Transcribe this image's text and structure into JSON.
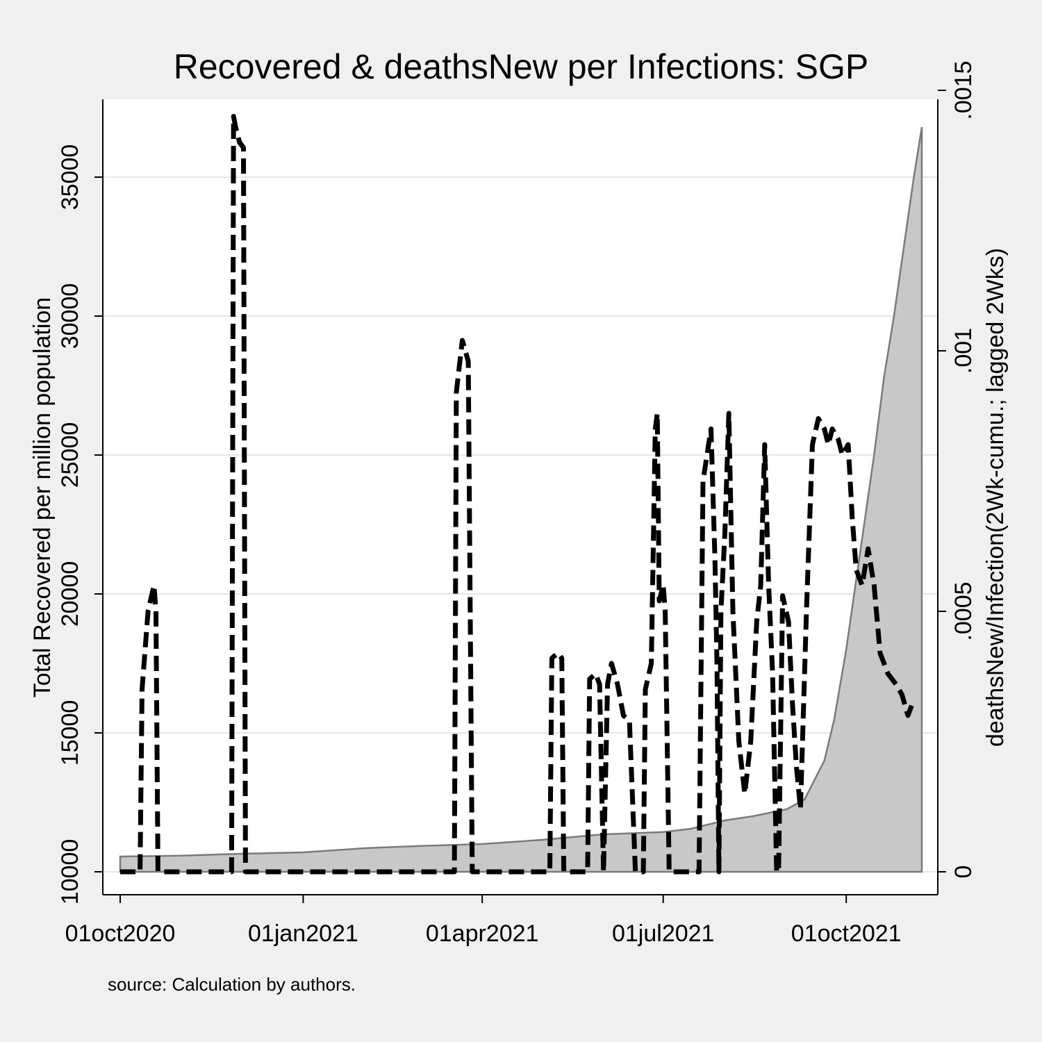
{
  "chart_data": {
    "type": "line",
    "title": "Recovered & deathsNew per Infections: SGP",
    "note": "source: Calculation by authors.",
    "x_axis": {
      "type": "date",
      "range": [
        "2020-10-01",
        "2021-11-08"
      ],
      "ticks": [
        {
          "date": "2020-10-01",
          "label": "01oct2020"
        },
        {
          "date": "2021-01-01",
          "label": "01jan2021"
        },
        {
          "date": "2021-04-01",
          "label": "01apr2021"
        },
        {
          "date": "2021-07-01",
          "label": "01jul2021"
        },
        {
          "date": "2021-10-01",
          "label": "01oct2021"
        }
      ]
    },
    "y_left": {
      "label": "Total Recovered per million population",
      "range": [
        10000,
        37000
      ],
      "ticks": [
        10000,
        15000,
        20000,
        25000,
        30000,
        35000
      ],
      "tick_labels": [
        "10000",
        "15000",
        "20000",
        "25000",
        "30000",
        "35000"
      ],
      "grid": true
    },
    "y_right": {
      "label": "deathsNew/Infection(2Wk-cumu.; lagged 2Wks)",
      "range": [
        0,
        0.00144
      ],
      "ticks": [
        0,
        0.0005,
        0.001,
        0.0015
      ],
      "tick_labels": [
        "0",
        ".0005",
        ".001",
        ".0015"
      ]
    },
    "series": [
      {
        "axis": "left",
        "style": "area",
        "color": "#c8c8c8",
        "line_color": "#7a7a7a",
        "points": [
          [
            "2020-10-01",
            10550
          ],
          [
            "2020-11-01",
            10580
          ],
          [
            "2020-12-01",
            10650
          ],
          [
            "2021-01-01",
            10700
          ],
          [
            "2021-02-01",
            10850
          ],
          [
            "2021-03-01",
            10930
          ],
          [
            "2021-04-01",
            11000
          ],
          [
            "2021-05-01",
            11150
          ],
          [
            "2021-06-01",
            11350
          ],
          [
            "2021-07-01",
            11430
          ],
          [
            "2021-07-15",
            11550
          ],
          [
            "2021-08-01",
            11850
          ],
          [
            "2021-08-15",
            12000
          ],
          [
            "2021-09-01",
            12250
          ],
          [
            "2021-09-10",
            12600
          ],
          [
            "2021-09-20",
            14000
          ],
          [
            "2021-09-25",
            15500
          ],
          [
            "2021-10-01",
            18000
          ],
          [
            "2021-10-05",
            20000
          ],
          [
            "2021-10-10",
            22500
          ],
          [
            "2021-10-15",
            25000
          ],
          [
            "2021-10-20",
            27800
          ],
          [
            "2021-10-25",
            30000
          ],
          [
            "2021-10-30",
            32500
          ],
          [
            "2021-11-04",
            35000
          ],
          [
            "2021-11-08",
            36800
          ]
        ]
      },
      {
        "axis": "right",
        "style": "dashed-line",
        "color": "#000000",
        "points": [
          [
            "2020-10-01",
            0
          ],
          [
            "2020-10-11",
            0
          ],
          [
            "2020-10-12",
            0.00035
          ],
          [
            "2020-10-15",
            0.0005
          ],
          [
            "2020-10-18",
            0.00055
          ],
          [
            "2020-10-19",
            0.0005
          ],
          [
            "2020-10-20",
            0
          ],
          [
            "2020-11-26",
            0
          ],
          [
            "2020-11-27",
            0.00145
          ],
          [
            "2020-11-28",
            0.00143
          ],
          [
            "2020-11-30",
            0.0014
          ],
          [
            "2020-12-02",
            0.00139
          ],
          [
            "2020-12-03",
            0
          ],
          [
            "2021-03-18",
            0
          ],
          [
            "2021-03-19",
            0.00092
          ],
          [
            "2021-03-22",
            0.00102
          ],
          [
            "2021-03-25",
            0.00098
          ],
          [
            "2021-03-27",
            0
          ],
          [
            "2021-05-05",
            0
          ],
          [
            "2021-05-06",
            0.00041
          ],
          [
            "2021-05-09",
            0.00042
          ],
          [
            "2021-05-11",
            0.00041
          ],
          [
            "2021-05-12",
            0
          ],
          [
            "2021-05-24",
            0
          ],
          [
            "2021-05-25",
            0.00037
          ],
          [
            "2021-05-28",
            0.00038
          ],
          [
            "2021-05-30",
            0.00036
          ],
          [
            "2021-06-01",
            0
          ],
          [
            "2021-06-03",
            0.00036
          ],
          [
            "2021-06-05",
            0.0004
          ],
          [
            "2021-06-08",
            0.00036
          ],
          [
            "2021-06-11",
            0.0003
          ],
          [
            "2021-06-14",
            0.00029
          ],
          [
            "2021-06-17",
            0
          ],
          [
            "2021-06-21",
            0
          ],
          [
            "2021-06-22",
            0.00035
          ],
          [
            "2021-06-25",
            0.0004
          ],
          [
            "2021-06-27",
            0.00085
          ],
          [
            "2021-06-28",
            0.00088
          ],
          [
            "2021-06-29",
            0.00052
          ],
          [
            "2021-07-01",
            0.00055
          ],
          [
            "2021-07-02",
            0.0005
          ],
          [
            "2021-07-04",
            0
          ],
          [
            "2021-07-19",
            0
          ],
          [
            "2021-07-21",
            0.00075
          ],
          [
            "2021-07-25",
            0.00085
          ],
          [
            "2021-07-27",
            0.0006
          ],
          [
            "2021-07-28",
            0.0004
          ],
          [
            "2021-07-29",
            0
          ],
          [
            "2021-07-30",
            0.0005
          ],
          [
            "2021-08-01",
            0.00065
          ],
          [
            "2021-08-03",
            0.00088
          ],
          [
            "2021-08-05",
            0.0005
          ],
          [
            "2021-08-08",
            0.00025
          ],
          [
            "2021-08-11",
            0.00015
          ],
          [
            "2021-08-14",
            0.00025
          ],
          [
            "2021-08-17",
            0.00048
          ],
          [
            "2021-08-19",
            0.00055
          ],
          [
            "2021-08-21",
            0.00082
          ],
          [
            "2021-08-23",
            0.00055
          ],
          [
            "2021-08-25",
            0.00038
          ],
          [
            "2021-08-27",
            0
          ],
          [
            "2021-08-28",
            0
          ],
          [
            "2021-08-30",
            0.00053
          ],
          [
            "2021-09-02",
            0.00048
          ],
          [
            "2021-09-04",
            0.00032
          ],
          [
            "2021-09-06",
            0.0002
          ],
          [
            "2021-09-08",
            0.00012
          ],
          [
            "2021-09-11",
            0.0005
          ],
          [
            "2021-09-14",
            0.00082
          ],
          [
            "2021-09-17",
            0.00087
          ],
          [
            "2021-09-20",
            0.00085
          ],
          [
            "2021-09-22",
            0.00082
          ],
          [
            "2021-09-24",
            0.00085
          ],
          [
            "2021-09-27",
            0.00083
          ],
          [
            "2021-09-29",
            0.0008
          ],
          [
            "2021-10-02",
            0.00082
          ],
          [
            "2021-10-04",
            0.00068
          ],
          [
            "2021-10-06",
            0.00058
          ],
          [
            "2021-10-09",
            0.00055
          ],
          [
            "2021-10-12",
            0.00062
          ],
          [
            "2021-10-15",
            0.00055
          ],
          [
            "2021-10-18",
            0.00042
          ],
          [
            "2021-10-22",
            0.00038
          ],
          [
            "2021-10-26",
            0.00036
          ],
          [
            "2021-10-29",
            0.00034
          ],
          [
            "2021-11-01",
            0.0003
          ],
          [
            "2021-11-04",
            0.00033
          ]
        ]
      }
    ]
  }
}
